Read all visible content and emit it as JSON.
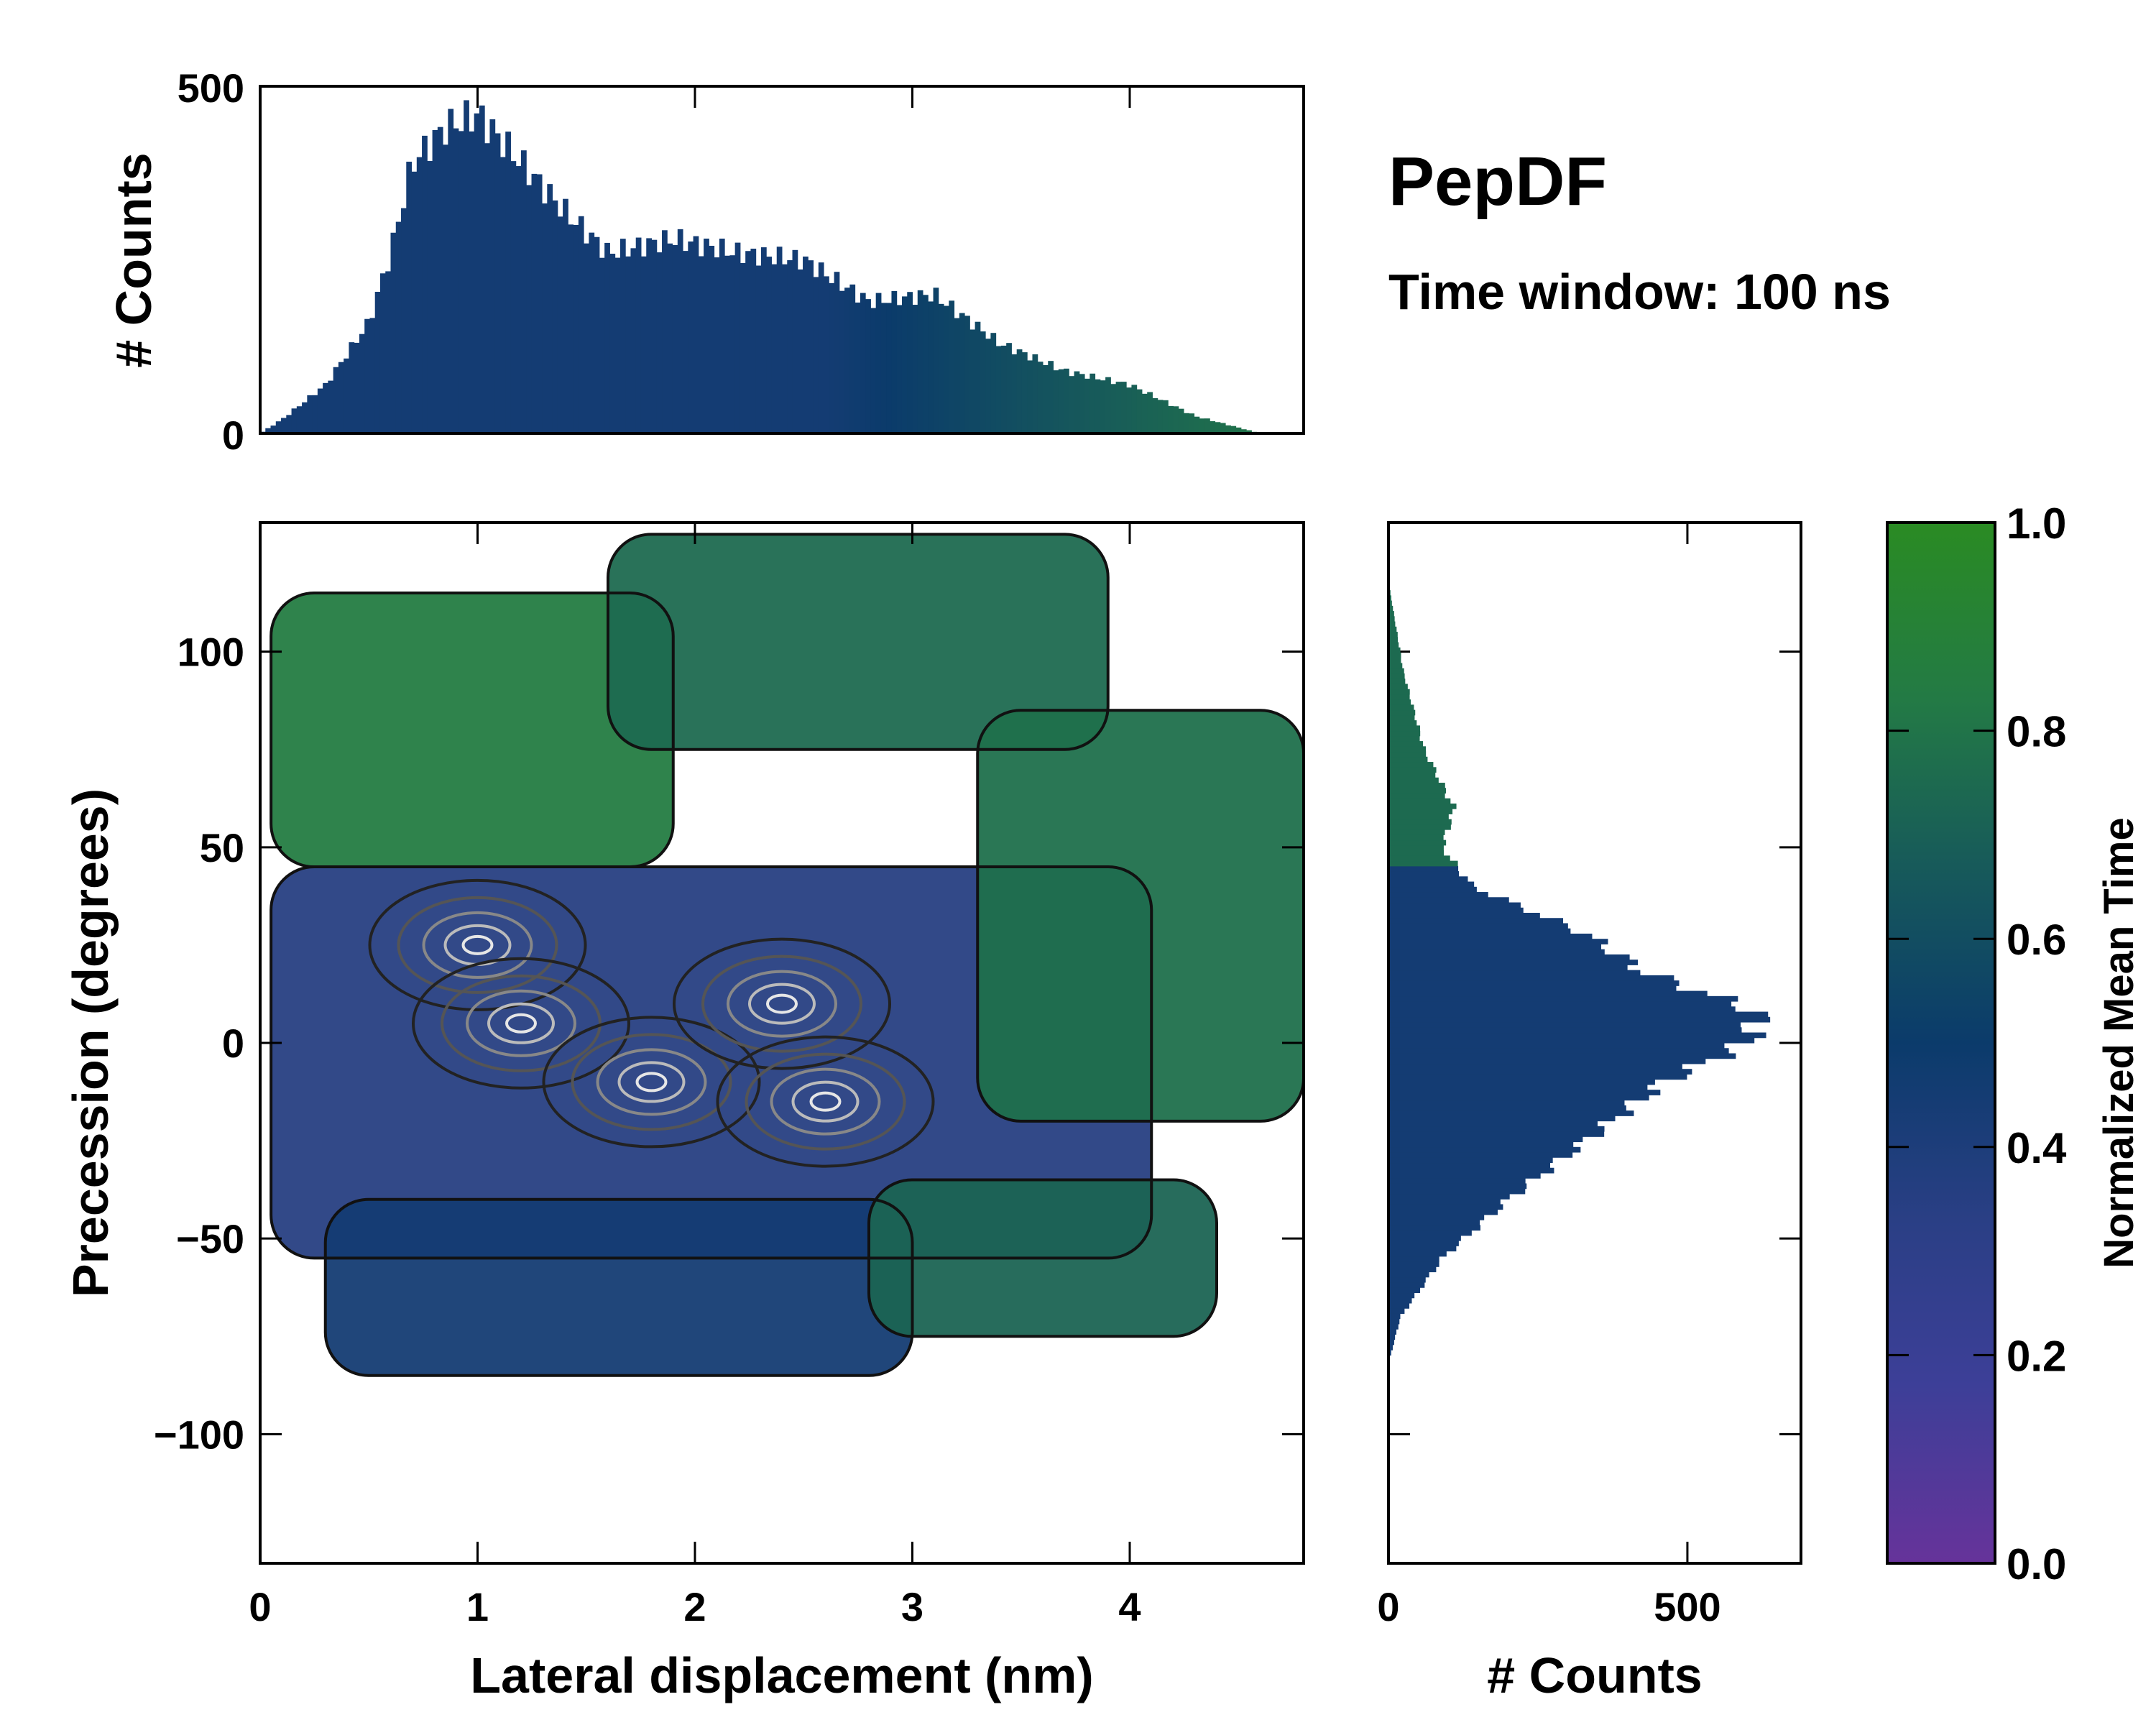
{
  "chart_data": {
    "type": "2d-histogram-with-marginals",
    "title": "PepDF",
    "subtitle": "Time window: 100 ns",
    "main": {
      "xlabel": "Lateral displacement (nm)",
      "ylabel": "Precession (degrees)",
      "xlim": [
        0,
        4.8
      ],
      "ylim": [
        -133,
        133
      ],
      "xticks": [
        0,
        1,
        2,
        3,
        4
      ],
      "xtick_labels": [
        "0",
        "1",
        "2",
        "3",
        "4"
      ],
      "yticks": [
        100,
        50,
        0,
        -50,
        -100
      ],
      "ytick_labels": [
        "100",
        "50",
        "0",
        "−50",
        "−100"
      ],
      "regions": [
        {
          "name": "central band",
          "x": [
            0.05,
            4.1
          ],
          "y": [
            -55,
            45
          ],
          "color_value": 0.35
        },
        {
          "name": "upper-left lobe",
          "x": [
            0.05,
            1.9
          ],
          "y": [
            45,
            115
          ],
          "color_value": 0.85
        },
        {
          "name": "upper-middle lobe",
          "x": [
            1.6,
            3.9
          ],
          "y": [
            75,
            130
          ],
          "color_value": 0.75
        },
        {
          "name": "right lobe",
          "x": [
            3.3,
            4.8
          ],
          "y": [
            -20,
            85
          ],
          "color_value": 0.78
        },
        {
          "name": "lower band",
          "x": [
            0.3,
            3.0
          ],
          "y": [
            -85,
            -40
          ],
          "color_value": 0.45
        },
        {
          "name": "lower-right lobe",
          "x": [
            2.8,
            4.4
          ],
          "y": [
            -75,
            -35
          ],
          "color_value": 0.72
        }
      ],
      "density_peaks": [
        {
          "x": 1.0,
          "y": 25
        },
        {
          "x": 1.2,
          "y": 5
        },
        {
          "x": 1.8,
          "y": -10
        },
        {
          "x": 2.4,
          "y": 10
        },
        {
          "x": 2.6,
          "y": -15
        }
      ]
    },
    "top_histogram": {
      "ylabel": "# Counts",
      "ylim": [
        0,
        500
      ],
      "yticks": [
        0,
        500
      ],
      "ytick_labels": [
        "0",
        "500"
      ],
      "x_peak_profile": [
        {
          "x": 0.0,
          "count": 0
        },
        {
          "x": 0.1,
          "count": 20
        },
        {
          "x": 0.3,
          "count": 70
        },
        {
          "x": 0.5,
          "count": 160
        },
        {
          "x": 0.6,
          "count": 260
        },
        {
          "x": 0.7,
          "count": 390
        },
        {
          "x": 0.85,
          "count": 440
        },
        {
          "x": 1.0,
          "count": 460
        },
        {
          "x": 1.2,
          "count": 390
        },
        {
          "x": 1.4,
          "count": 320
        },
        {
          "x": 1.6,
          "count": 260
        },
        {
          "x": 1.9,
          "count": 280
        },
        {
          "x": 2.2,
          "count": 260
        },
        {
          "x": 2.5,
          "count": 250
        },
        {
          "x": 2.8,
          "count": 190
        },
        {
          "x": 3.1,
          "count": 200
        },
        {
          "x": 3.4,
          "count": 130
        },
        {
          "x": 3.7,
          "count": 90
        },
        {
          "x": 4.0,
          "count": 70
        },
        {
          "x": 4.3,
          "count": 25
        },
        {
          "x": 4.6,
          "count": 0
        }
      ]
    },
    "right_histogram": {
      "xlabel": "# Counts",
      "xlim": [
        0,
        690
      ],
      "xticks": [
        0,
        500
      ],
      "xtick_labels": [
        "0",
        "500"
      ],
      "y_peak_profile": [
        {
          "y": -82,
          "count": 0
        },
        {
          "y": -70,
          "count": 20
        },
        {
          "y": -55,
          "count": 90
        },
        {
          "y": -40,
          "count": 200
        },
        {
          "y": -25,
          "count": 330
        },
        {
          "y": -10,
          "count": 460
        },
        {
          "y": 0,
          "count": 600
        },
        {
          "y": 8,
          "count": 620
        },
        {
          "y": 18,
          "count": 430
        },
        {
          "y": 28,
          "count": 330
        },
        {
          "y": 40,
          "count": 140
        },
        {
          "y": 50,
          "count": 90
        },
        {
          "y": 60,
          "count": 110
        },
        {
          "y": 75,
          "count": 60
        },
        {
          "y": 95,
          "count": 25
        },
        {
          "y": 118,
          "count": 0
        }
      ]
    },
    "colorbar": {
      "label": "Normalized Mean Time",
      "range": [
        0.0,
        1.0
      ],
      "ticks": [
        0.0,
        0.2,
        0.4,
        0.6,
        0.8,
        1.0
      ],
      "tick_labels": [
        "0.0",
        "0.2",
        "0.4",
        "0.6",
        "0.8",
        "1.0"
      ],
      "colors": [
        "#66339a",
        "#3d3f98",
        "#2a3f85",
        "#0b3b6b",
        "#175a5a",
        "#237a45",
        "#2a8b23"
      ]
    }
  }
}
